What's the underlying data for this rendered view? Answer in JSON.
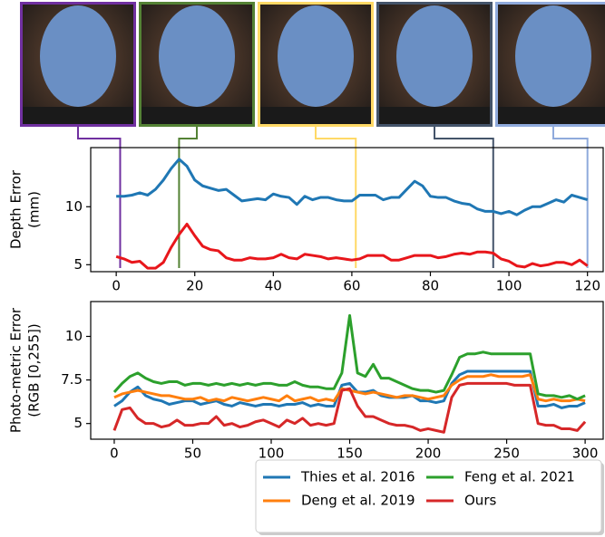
{
  "chart_data": [
    {
      "type": "line",
      "ylabel": [
        "Depth Error",
        "(mm)"
      ],
      "x": [
        0,
        2,
        4,
        6,
        8,
        10,
        12,
        14,
        16,
        18,
        20,
        22,
        24,
        26,
        28,
        30,
        32,
        34,
        36,
        38,
        40,
        42,
        44,
        46,
        48,
        50,
        52,
        54,
        56,
        58,
        60,
        62,
        64,
        66,
        68,
        70,
        72,
        74,
        76,
        78,
        80,
        82,
        84,
        86,
        88,
        90,
        92,
        94,
        96,
        98,
        100,
        102,
        104,
        106,
        108,
        110,
        112,
        114,
        116,
        118,
        120
      ],
      "series": [
        {
          "color": "#1f77b4",
          "values": [
            10.9,
            10.9,
            11,
            11.2,
            11,
            11.5,
            12.3,
            13.3,
            14.1,
            13.5,
            12.3,
            11.8,
            11.6,
            11.4,
            11.5,
            11,
            10.5,
            10.6,
            10.7,
            10.6,
            11.1,
            10.9,
            10.8,
            10.2,
            10.9,
            10.6,
            10.8,
            10.8,
            10.6,
            10.5,
            10.5,
            11,
            11,
            11,
            10.6,
            10.8,
            10.8,
            11.5,
            12.2,
            11.8,
            10.9,
            10.8,
            10.8,
            10.5,
            10.3,
            10.2,
            9.8,
            9.6,
            9.6,
            9.4,
            9.6,
            9.3,
            9.7,
            10,
            10,
            10.3,
            10.6,
            10.4,
            11,
            10.8,
            10.6
          ]
        },
        {
          "color": "#e8161b",
          "values": [
            5.7,
            5.5,
            5.2,
            5.3,
            4.7,
            4.7,
            5.2,
            6.5,
            7.6,
            8.5,
            7.5,
            6.6,
            6.3,
            6.2,
            5.6,
            5.4,
            5.4,
            5.6,
            5.5,
            5.5,
            5.6,
            5.9,
            5.6,
            5.5,
            5.9,
            5.8,
            5.7,
            5.5,
            5.6,
            5.5,
            5.4,
            5.5,
            5.8,
            5.8,
            5.8,
            5.4,
            5.4,
            5.6,
            5.8,
            5.8,
            5.8,
            5.6,
            5.7,
            5.9,
            6,
            5.9,
            6.1,
            6.1,
            6,
            5.5,
            5.3,
            4.9,
            4.8,
            5.1,
            4.9,
            5,
            5.2,
            5.2,
            5,
            5.4,
            4.9
          ]
        }
      ],
      "frame_markers": {
        "x": [
          1,
          16,
          61,
          96,
          120
        ],
        "colors": [
          "#7030a0",
          "#548235",
          "#ffd966",
          "#44546a",
          "#8faadc"
        ]
      },
      "xlim": [
        -6.5,
        124
      ],
      "ylim": [
        4.4,
        15.1
      ],
      "xticks": [
        0,
        20,
        40,
        60,
        80,
        100,
        120
      ],
      "yticks": [
        5,
        10
      ]
    },
    {
      "type": "line",
      "ylabel": [
        "Photo-metric Error",
        "(RGB [0,255])"
      ],
      "x": [
        0,
        5,
        10,
        15,
        20,
        25,
        30,
        35,
        40,
        45,
        50,
        55,
        60,
        65,
        70,
        75,
        80,
        85,
        90,
        95,
        100,
        105,
        110,
        115,
        120,
        125,
        130,
        135,
        140,
        145,
        150,
        155,
        160,
        165,
        170,
        175,
        180,
        185,
        190,
        195,
        200,
        205,
        210,
        215,
        220,
        225,
        230,
        235,
        240,
        245,
        250,
        255,
        260,
        265,
        270,
        275,
        280,
        285,
        290,
        295,
        300
      ],
      "series": [
        {
          "name": "Thies et al. 2016",
          "color": "#1f77b4",
          "values": [
            6.0,
            6.3,
            6.8,
            7.1,
            6.6,
            6.4,
            6.3,
            6.1,
            6.2,
            6.3,
            6.3,
            6.1,
            6.2,
            6.3,
            6.1,
            6.0,
            6.2,
            6.1,
            6.0,
            6.1,
            6.1,
            6.0,
            6.1,
            6.1,
            6.2,
            6.0,
            6.1,
            6.0,
            6.0,
            7.2,
            7.3,
            6.8,
            6.8,
            6.9,
            6.6,
            6.5,
            6.5,
            6.5,
            6.6,
            6.3,
            6.3,
            6.2,
            6.3,
            7.3,
            7.8,
            8.0,
            8.0,
            8.0,
            8.0,
            8.0,
            8.0,
            8.0,
            8.0,
            8.0,
            6.0,
            6.0,
            6.1,
            5.9,
            6.0,
            6.0,
            6.2
          ]
        },
        {
          "name": "Deng et al. 2019",
          "color": "#ff7f0e",
          "values": [
            6.5,
            6.7,
            6.8,
            6.9,
            6.8,
            6.7,
            6.6,
            6.6,
            6.5,
            6.4,
            6.4,
            6.5,
            6.3,
            6.4,
            6.3,
            6.5,
            6.4,
            6.3,
            6.4,
            6.5,
            6.4,
            6.3,
            6.6,
            6.3,
            6.4,
            6.5,
            6.3,
            6.4,
            6.3,
            7.0,
            6.9,
            6.8,
            6.7,
            6.8,
            6.7,
            6.6,
            6.5,
            6.6,
            6.6,
            6.5,
            6.4,
            6.5,
            6.6,
            7.2,
            7.5,
            7.7,
            7.7,
            7.7,
            7.8,
            7.7,
            7.7,
            7.7,
            7.7,
            7.8,
            6.4,
            6.3,
            6.4,
            6.3,
            6.3,
            6.4,
            6.3
          ]
        },
        {
          "name": "Feng et al. 2021",
          "color": "#2ca02c",
          "values": [
            6.8,
            7.3,
            7.7,
            7.9,
            7.6,
            7.4,
            7.3,
            7.4,
            7.4,
            7.2,
            7.3,
            7.3,
            7.2,
            7.3,
            7.2,
            7.3,
            7.2,
            7.3,
            7.2,
            7.3,
            7.3,
            7.2,
            7.2,
            7.4,
            7.2,
            7.1,
            7.1,
            7.0,
            7.0,
            7.9,
            11.2,
            7.9,
            7.7,
            8.4,
            7.6,
            7.6,
            7.4,
            7.2,
            7.0,
            6.9,
            6.9,
            6.8,
            6.9,
            7.8,
            8.8,
            9.0,
            9.0,
            9.1,
            9.0,
            9.0,
            9.0,
            9.0,
            9.0,
            9.0,
            6.7,
            6.6,
            6.6,
            6.5,
            6.6,
            6.4,
            6.6
          ]
        },
        {
          "name": "Ours",
          "color": "#d62728",
          "values": [
            4.6,
            5.8,
            5.9,
            5.3,
            5.0,
            5.0,
            4.8,
            4.9,
            5.2,
            4.9,
            4.9,
            5.0,
            5.0,
            5.4,
            4.9,
            5.0,
            4.8,
            4.9,
            5.1,
            5.2,
            5.0,
            4.8,
            5.2,
            5.0,
            5.3,
            4.9,
            5.0,
            4.9,
            5.0,
            6.9,
            7.0,
            6.0,
            5.4,
            5.4,
            5.2,
            5.0,
            4.9,
            4.9,
            4.8,
            4.6,
            4.7,
            4.6,
            4.5,
            6.5,
            7.2,
            7.3,
            7.3,
            7.3,
            7.3,
            7.3,
            7.3,
            7.2,
            7.2,
            7.2,
            5.0,
            4.9,
            4.9,
            4.7,
            4.7,
            4.6,
            5.1
          ]
        }
      ],
      "xlim": [
        -15,
        311.5
      ],
      "ylim": [
        4.1,
        12
      ],
      "xticks": [
        0,
        50,
        100,
        150,
        200,
        250,
        300
      ],
      "yticks": [
        5,
        7.5,
        10
      ]
    }
  ]
}
